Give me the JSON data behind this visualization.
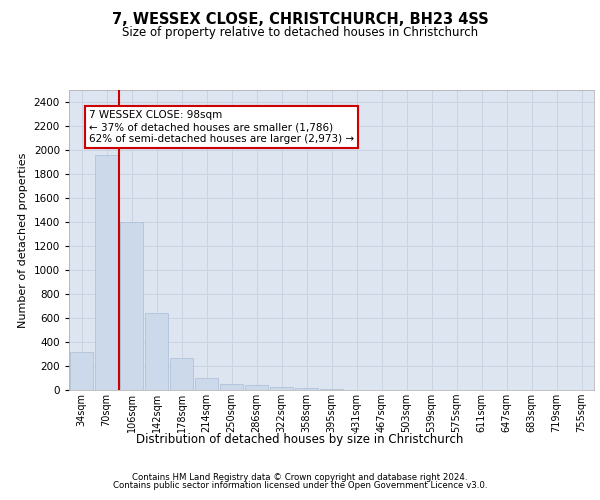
{
  "title1": "7, WESSEX CLOSE, CHRISTCHURCH, BH23 4SS",
  "title2": "Size of property relative to detached houses in Christchurch",
  "xlabel": "Distribution of detached houses by size in Christchurch",
  "ylabel": "Number of detached properties",
  "bar_labels": [
    "34sqm",
    "70sqm",
    "106sqm",
    "142sqm",
    "178sqm",
    "214sqm",
    "250sqm",
    "286sqm",
    "322sqm",
    "358sqm",
    "395sqm",
    "431sqm",
    "467sqm",
    "503sqm",
    "539sqm",
    "575sqm",
    "611sqm",
    "647sqm",
    "683sqm",
    "719sqm",
    "755sqm"
  ],
  "bar_values": [
    320,
    1960,
    1400,
    640,
    265,
    100,
    50,
    40,
    25,
    20,
    5,
    2,
    0,
    0,
    0,
    0,
    0,
    0,
    0,
    0,
    0
  ],
  "bar_color": "#ccd9ea",
  "bar_edge_color": "#aabdd4",
  "vline_x": 1.5,
  "vline_color": "#cc0000",
  "annotation_text": "7 WESSEX CLOSE: 98sqm\n← 37% of detached houses are smaller (1,786)\n62% of semi-detached houses are larger (2,973) →",
  "annotation_box_color": "#ffffff",
  "annotation_box_edge": "#cc0000",
  "ylim": [
    0,
    2500
  ],
  "yticks": [
    0,
    200,
    400,
    600,
    800,
    1000,
    1200,
    1400,
    1600,
    1800,
    2000,
    2200,
    2400
  ],
  "grid_color": "#c8d4e4",
  "background_color": "#dde5f0",
  "fig_background": "#ffffff",
  "footer1": "Contains HM Land Registry data © Crown copyright and database right 2024.",
  "footer2": "Contains public sector information licensed under the Open Government Licence v3.0."
}
